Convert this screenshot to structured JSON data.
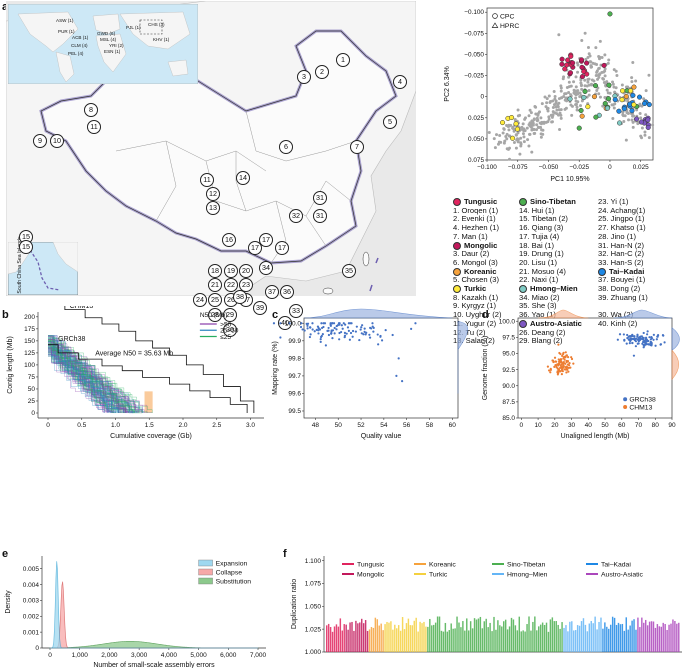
{
  "panels": {
    "a": "a",
    "b": "b",
    "c": "c",
    "d": "d",
    "e": "e",
    "f": "f"
  },
  "map": {
    "inset_populations": [
      "ASW (1)",
      "PUR (1)",
      "ACB (1)",
      "CLM (4)",
      "PEL (4)",
      "GWD (6)",
      "MSL (4)",
      "YRI (2)",
      "ESN (1)",
      "PJL (1)",
      "CHS (3)",
      "KHV (1)"
    ],
    "south_china_sea_label": "South China Sea Islands",
    "markers": [
      "1",
      "2",
      "3",
      "4",
      "5",
      "6",
      "7",
      "8",
      "9",
      "10",
      "11",
      "12",
      "13",
      "14",
      "15",
      "15",
      "16",
      "17",
      "17",
      "17",
      "18",
      "19",
      "20",
      "21",
      "22",
      "23",
      "24",
      "25",
      "26",
      "27",
      "28",
      "29",
      "30",
      "31",
      "31",
      "32",
      "33",
      "34",
      "35",
      "36",
      "37",
      "38",
      "39",
      "40"
    ]
  },
  "pca": {
    "legend": [
      {
        "symbol": "circle",
        "label": "CPC"
      },
      {
        "symbol": "triangle",
        "label": "HPRC"
      }
    ],
    "xlabel": "PC1 10.95%",
    "ylabel": "PC2 6.34%",
    "xticks": [
      "−0.100",
      "−0.075",
      "−0.050",
      "−0.025",
      "0",
      "0.025"
    ],
    "yticks": [
      "−0.100",
      "−0.075",
      "−0.050",
      "−0.025",
      "0",
      "0.025",
      "0.050",
      "0.075"
    ]
  },
  "groups": {
    "col1": [
      {
        "group": "Tungusic",
        "color": "#e0245e",
        "items": [
          "1. Oroqen (1)",
          "2. Evenki (1)",
          "4. Hezhen (1)",
          "7. Man (1)"
        ]
      },
      {
        "group": "Mongolic",
        "color": "#c2185b",
        "items": [
          "3. Daur (2)",
          "6. Mongol  (3)"
        ]
      },
      {
        "group": "Koreanic",
        "color": "#f6a23c",
        "items": [
          "5. Chosen (3)"
        ]
      },
      {
        "group": "Turkic",
        "color": "#ffeb3b",
        "items": [
          "8. Kazakh (1)",
          "9. Kyrgyz (1)",
          "10. Uyghur (2)",
          "11. Yugur (2)",
          "12. Tu  (2)",
          "13. Salar (2)"
        ]
      }
    ],
    "col2": [
      {
        "group": "Sino-Tibetan",
        "color": "#4caf50",
        "items": [
          "14. Hui (1)",
          "15. Tibetan (2)",
          "16. Qiang (3)",
          "17. Tujia  (4)",
          "18. Bai (1)",
          "19. Drung (1)",
          "20. Lisu (1)",
          "21. Mosuo (4)",
          "22. Naxi (1)"
        ]
      },
      {
        "group": "Hmong–Mien",
        "color": "#80cbc4",
        "items": [
          "34. Miao (2)",
          "35. She (3)",
          "36. Yao (1)"
        ]
      },
      {
        "group": "Austro-Asiatic",
        "color": "#7e57c2",
        "items": [
          "26. Deang (2)",
          "29. Blang (2)"
        ]
      }
    ],
    "col3": [
      {
        "group": "",
        "color": "",
        "items": [
          "23. Yi (1)",
          "24. Achang(1)",
          "25. Jingpo (1)",
          "27. Khatso (1)",
          "28. Jino (1)",
          "31. Han-N (2)",
          "32. Han-C (2)",
          "33. Han-S (2)"
        ]
      },
      {
        "group": "Tai–Kadai",
        "color": "#1e88e5",
        "items": [
          "37. Bouyei (1)",
          "38. Dong (2)",
          "39. Zhuang (1)"
        ]
      },
      {
        "group": "",
        "color": "",
        "items": [
          "30. Wa (2)",
          "40. Kinh (2)"
        ]
      }
    ]
  },
  "panel_b": {
    "labels": {
      "chm13": "CHM13",
      "grch38": "GRCh38",
      "n50": "Average N50 = 35.63 Mb"
    },
    "legend_title": "N50 (Mb)",
    "legend": [
      {
        "label": ">50",
        "color": "#8e44ad"
      },
      {
        "label": "25–50",
        "color": "#2e86c1"
      },
      {
        "label": "≤25",
        "color": "#27ae60"
      }
    ],
    "xlabel": "Cumulative coverage (Gb)",
    "ylabel": "Contig length (Mb)",
    "xticks": [
      "0",
      "0.5",
      "1.0",
      "1.5",
      "2.0",
      "2.5",
      "3.0"
    ],
    "yticks": [
      "0",
      "25",
      "50",
      "75",
      "100",
      "125",
      "150",
      "175",
      "200"
    ]
  },
  "panel_c": {
    "xlabel": "Quality value",
    "ylabel": "Mapping rate (%)",
    "xticks": [
      "48",
      "50",
      "52",
      "54",
      "56",
      "58",
      "60"
    ],
    "yticks": [
      "99.5",
      "99.6",
      "99.7",
      "99.8",
      "99.9",
      "100.0"
    ]
  },
  "panel_d": {
    "xlabel": "Unaligned length (Mb)",
    "ylabel": "Genome fraction (%)",
    "xticks": [
      "0",
      "10",
      "20",
      "30",
      "40",
      "50",
      "60",
      "70",
      "80",
      "90"
    ],
    "yticks": [
      "85.0",
      "87.5",
      "90.0",
      "92.5",
      "95.0",
      "97.5",
      "100.0"
    ],
    "legend": [
      {
        "label": "GRCh38",
        "color": "#4472c4"
      },
      {
        "label": "CHM13",
        "color": "#ed7d31"
      }
    ]
  },
  "panel_e": {
    "xlabel": "Number of small-scale assembly errors",
    "ylabel": "Density",
    "xticks": [
      "0",
      "1,000",
      "2,000",
      "3,000",
      "4,000",
      "5,000",
      "6,000",
      "7,000"
    ],
    "yticks": [
      "0",
      "0.001",
      "0.002",
      "0.003",
      "0.004",
      "0.005"
    ],
    "legend": [
      {
        "label": "Expansion",
        "color": "#9ed8f0"
      },
      {
        "label": "Collapse",
        "color": "#f7a8a8"
      },
      {
        "label": "Substitution",
        "color": "#8cc98c"
      }
    ]
  },
  "panel_f": {
    "ylabel": "Duplication ratio",
    "yticks": [
      "1.000",
      "1.025",
      "1.050",
      "1.075",
      "1.100"
    ],
    "legend": [
      {
        "label": "Tungusic",
        "color": "#e0245e"
      },
      {
        "label": "Koreanic",
        "color": "#f6a23c"
      },
      {
        "label": "Sino-Tibetan",
        "color": "#4caf50"
      },
      {
        "label": "Tai–Kadai",
        "color": "#1e88e5"
      },
      {
        "label": "Mongolic",
        "color": "#c2185b"
      },
      {
        "label": "Turkic",
        "color": "#f4d03f"
      },
      {
        "label": "Hmong–Mien",
        "color": "#64b5f6"
      },
      {
        "label": "Austro-Asiatic",
        "color": "#ab47bc"
      }
    ]
  }
}
